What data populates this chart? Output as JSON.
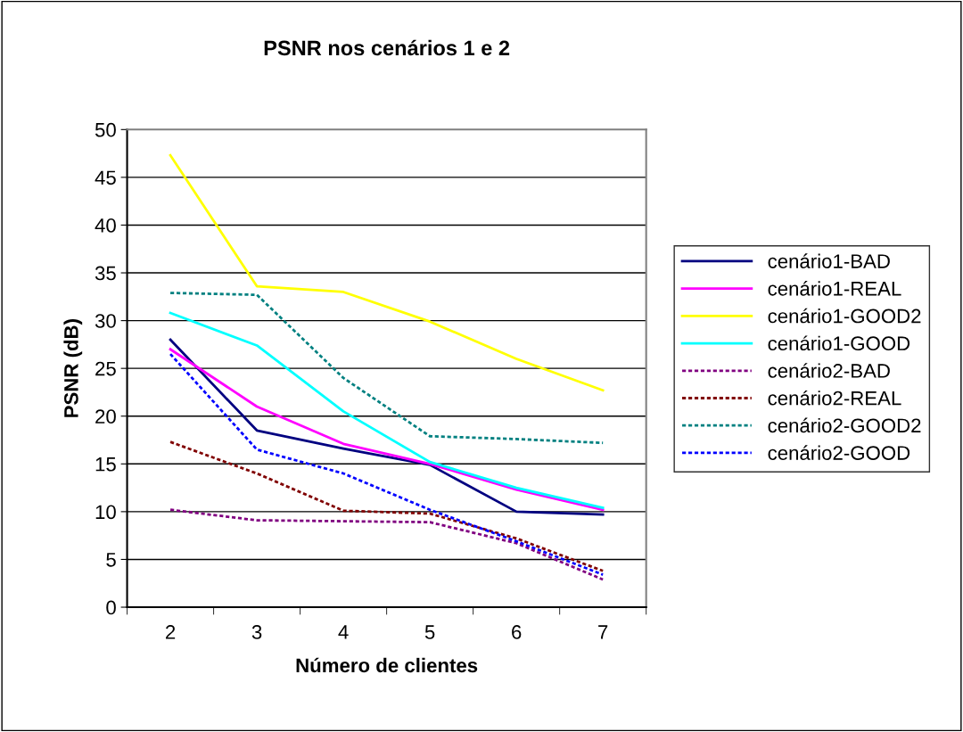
{
  "chart_data": {
    "type": "line",
    "title": "PSNR nos cenários 1 e 2",
    "xlabel": "Número de clientes",
    "ylabel": "PSNR (dB)",
    "categories": [
      "2",
      "3",
      "4",
      "5",
      "6",
      "7"
    ],
    "series": [
      {
        "name": "cenário1-BAD",
        "color": "#000080",
        "line_style": "solid",
        "values": [
          28.0,
          18.5,
          16.6,
          14.9,
          10.0,
          9.7
        ]
      },
      {
        "name": "cenário1-REAL",
        "color": "#ff00ff",
        "line_style": "solid",
        "values": [
          27.0,
          21.0,
          17.1,
          15.0,
          12.3,
          10.2
        ]
      },
      {
        "name": "cenário1-GOOD2",
        "color": "#ffff00",
        "line_style": "solid",
        "values": [
          47.3,
          33.6,
          33.0,
          29.9,
          26.0,
          22.7
        ]
      },
      {
        "name": "cenário1-GOOD",
        "color": "#00ffff",
        "line_style": "solid",
        "values": [
          30.8,
          27.4,
          20.5,
          15.2,
          12.5,
          10.4
        ]
      },
      {
        "name": "cenário2-BAD",
        "color": "#800080",
        "line_style": "dashed",
        "values": [
          10.2,
          9.1,
          9.0,
          8.9,
          6.7,
          2.9
        ]
      },
      {
        "name": "cenário2-REAL",
        "color": "#800000",
        "line_style": "dashed",
        "values": [
          17.3,
          14.0,
          10.1,
          9.8,
          7.2,
          3.8
        ]
      },
      {
        "name": "cenário2-GOOD2",
        "color": "#008080",
        "line_style": "dashed",
        "values": [
          32.9,
          32.7,
          24.0,
          17.9,
          17.6,
          17.2
        ]
      },
      {
        "name": "cenário2-GOOD",
        "color": "#0000ff",
        "line_style": "dashed",
        "values": [
          26.5,
          16.5,
          14.0,
          10.2,
          6.9,
          3.4
        ]
      }
    ],
    "ylim": [
      0,
      50
    ],
    "yticks": [
      0,
      5,
      10,
      15,
      20,
      25,
      30,
      35,
      40,
      45,
      50
    ],
    "grid": "y",
    "legend": "right",
    "marker": "none"
  }
}
